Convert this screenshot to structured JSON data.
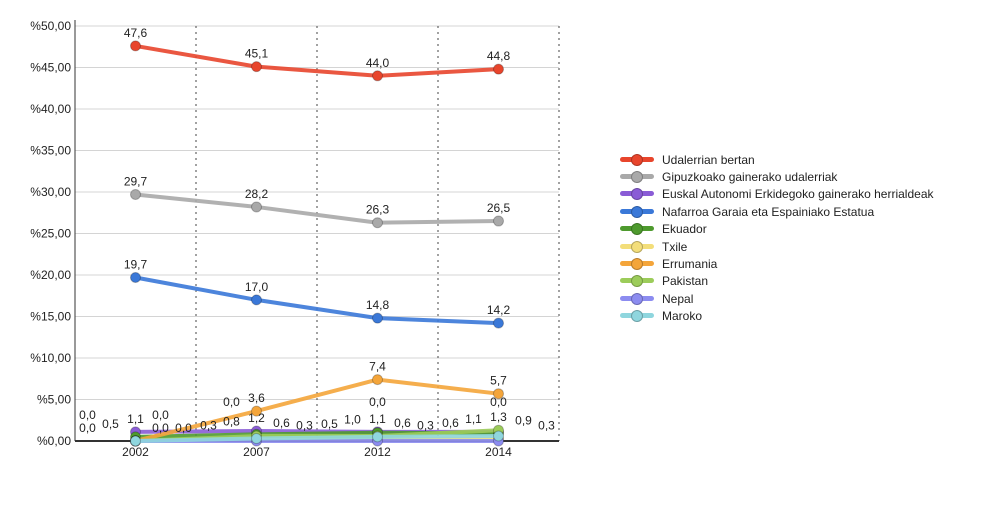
{
  "chart_data": {
    "type": "line",
    "title": "",
    "xlabel": "",
    "ylabel": "",
    "categories": [
      "2002",
      "2007",
      "2012",
      "2014"
    ],
    "ylim": [
      0,
      50
    ],
    "yticks": [
      "%0,00",
      "%5,00",
      "%10,00",
      "%15,00",
      "%20,00",
      "%25,00",
      "%30,00",
      "%35,00",
      "%40,00",
      "%45,00",
      "%50,00"
    ],
    "grid": true,
    "legend_position": "right",
    "series": [
      {
        "name": "Udalerrian bertan",
        "color": "#e8452c",
        "values": [
          47.6,
          45.1,
          44.0,
          44.8
        ],
        "labels": [
          "47,6",
          "45,1",
          "44,0",
          "44,8"
        ]
      },
      {
        "name": "Gipuzkoako gainerako udalerriak",
        "color": "#a9a9a9",
        "values": [
          29.7,
          28.2,
          26.3,
          26.5
        ],
        "labels": [
          "29,7",
          "28,2",
          "26,3",
          "26,5"
        ]
      },
      {
        "name": "Euskal Autonomi Erkidegoko gainerako herrialdeak",
        "color": "#8a5cd6",
        "values": [
          1.1,
          1.2,
          1.1,
          1.1
        ],
        "labels": [
          "1,1",
          "1,2",
          "1,1",
          "1,1"
        ]
      },
      {
        "name": "Nafarroa Garaia eta Espainiako Estatua",
        "color": "#3a78d8",
        "values": [
          19.7,
          17.0,
          14.8,
          14.2
        ],
        "labels": [
          "19,7",
          "17,0",
          "14,8",
          "14,2"
        ]
      },
      {
        "name": "Ekuador",
        "color": "#4e9a2e",
        "values": [
          0.5,
          0.8,
          1.0,
          0.9
        ],
        "labels": [
          "0,5",
          "0,8",
          "1,0",
          "0,9"
        ]
      },
      {
        "name": "Txile",
        "color": "#f3de7a",
        "values": [
          0.0,
          0.3,
          0.3,
          0.3
        ],
        "labels": [
          "0,0",
          "0,3",
          "0,3",
          "0,3"
        ]
      },
      {
        "name": "Errumania",
        "color": "#f4a53a",
        "values": [
          0.0,
          3.6,
          7.4,
          5.7
        ],
        "labels": [
          "0,0",
          "3,6",
          "7,4",
          "5,7"
        ]
      },
      {
        "name": "Pakistan",
        "color": "#9ccc5a",
        "values": [
          0.0,
          0.6,
          0.6,
          1.3
        ],
        "labels": [
          "0,0",
          "0,6",
          "0,6",
          "1,3"
        ]
      },
      {
        "name": "Nepal",
        "color": "#8c8cf0",
        "values": [
          0.0,
          0.0,
          0.0,
          0.0
        ],
        "labels": [
          "0,0",
          "0,0",
          "0,0",
          "0,0"
        ]
      },
      {
        "name": "Maroko",
        "color": "#8fd6de",
        "values": [
          0.0,
          0.3,
          0.5,
          0.6
        ],
        "labels": [
          "0,0",
          "0,3",
          "0,5",
          "0,6"
        ]
      }
    ]
  }
}
